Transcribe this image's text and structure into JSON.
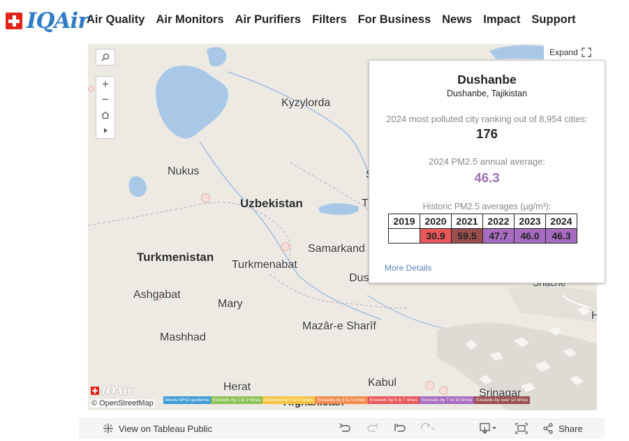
{
  "brand": {
    "logo_text": "IQAir"
  },
  "nav": [
    "Air Quality",
    "Air Monitors",
    "Air Purifiers",
    "Filters",
    "For Business",
    "News",
    "Impact",
    "Support"
  ],
  "map": {
    "expand_label": "Expand",
    "attribution": "© OpenStreetMap",
    "watermark": "IQAir",
    "cities": [
      {
        "name": "Kyzylorda",
        "kind": "city"
      },
      {
        "name": "Nukus",
        "kind": "city"
      },
      {
        "name": "Uzbekistan",
        "kind": "country"
      },
      {
        "name": "Turkmenistan",
        "kind": "country"
      },
      {
        "name": "Turkmenabat",
        "kind": "city"
      },
      {
        "name": "Samarkand",
        "kind": "city"
      },
      {
        "name": "Ashgabat",
        "kind": "city"
      },
      {
        "name": "Mary",
        "kind": "city"
      },
      {
        "name": "Mazâr-e Sharîf",
        "kind": "city"
      },
      {
        "name": "Mashhad",
        "kind": "city"
      },
      {
        "name": "Herat",
        "kind": "city"
      },
      {
        "name": "Kabul",
        "kind": "city"
      },
      {
        "name": "Srinagar",
        "kind": "city"
      },
      {
        "name": "Afghanistan",
        "kind": "country"
      },
      {
        "name": "Dus",
        "kind": "city"
      },
      {
        "name": "Shache",
        "kind": "city"
      },
      {
        "name": "S",
        "kind": "city"
      },
      {
        "name": "T",
        "kind": "city"
      },
      {
        "name": "H",
        "kind": "city"
      }
    ],
    "legend": [
      {
        "label": "Meets WHO guideline",
        "color": "#3c9bd4"
      },
      {
        "label": "Exceeds by 1 to 2 times",
        "color": "#8cc153"
      },
      {
        "label": "Exceeds by 2 to 3 times",
        "color": "#f5c542"
      },
      {
        "label": "Exceeds by 3 to 5 times",
        "color": "#f28b4c"
      },
      {
        "label": "Exceeds by 5 to 7 times",
        "color": "#e8575a"
      },
      {
        "label": "Exceeds by 7 to 10 times",
        "color": "#a66cc0"
      },
      {
        "label": "Exceeds by over 10 times",
        "color": "#9a4f4f"
      }
    ]
  },
  "popup": {
    "city": "Dushanbe",
    "subtitle": "Dushanbe, Tajikistan",
    "rank_label": "2024 most polluted city ranking out of 8,954 cities:",
    "rank": "176",
    "avg_label": "2024 PM2.5 annual average:",
    "avg": "46.3",
    "hist_label": "Historic PM2.5 averages (µg/m³):",
    "years": [
      "2019",
      "2020",
      "2021",
      "2022",
      "2023",
      "2024"
    ],
    "values": [
      "",
      "30.9",
      "59.5",
      "47.7",
      "46.0",
      "46.3"
    ],
    "value_colors": [
      "#ffffff",
      "#e8575a",
      "#9a4f4f",
      "#a66cc0",
      "#a66cc0",
      "#a66cc0"
    ],
    "more_details": "More Details"
  },
  "toolbar": {
    "view_label": "View on Tableau Public",
    "share_label": "Share"
  }
}
